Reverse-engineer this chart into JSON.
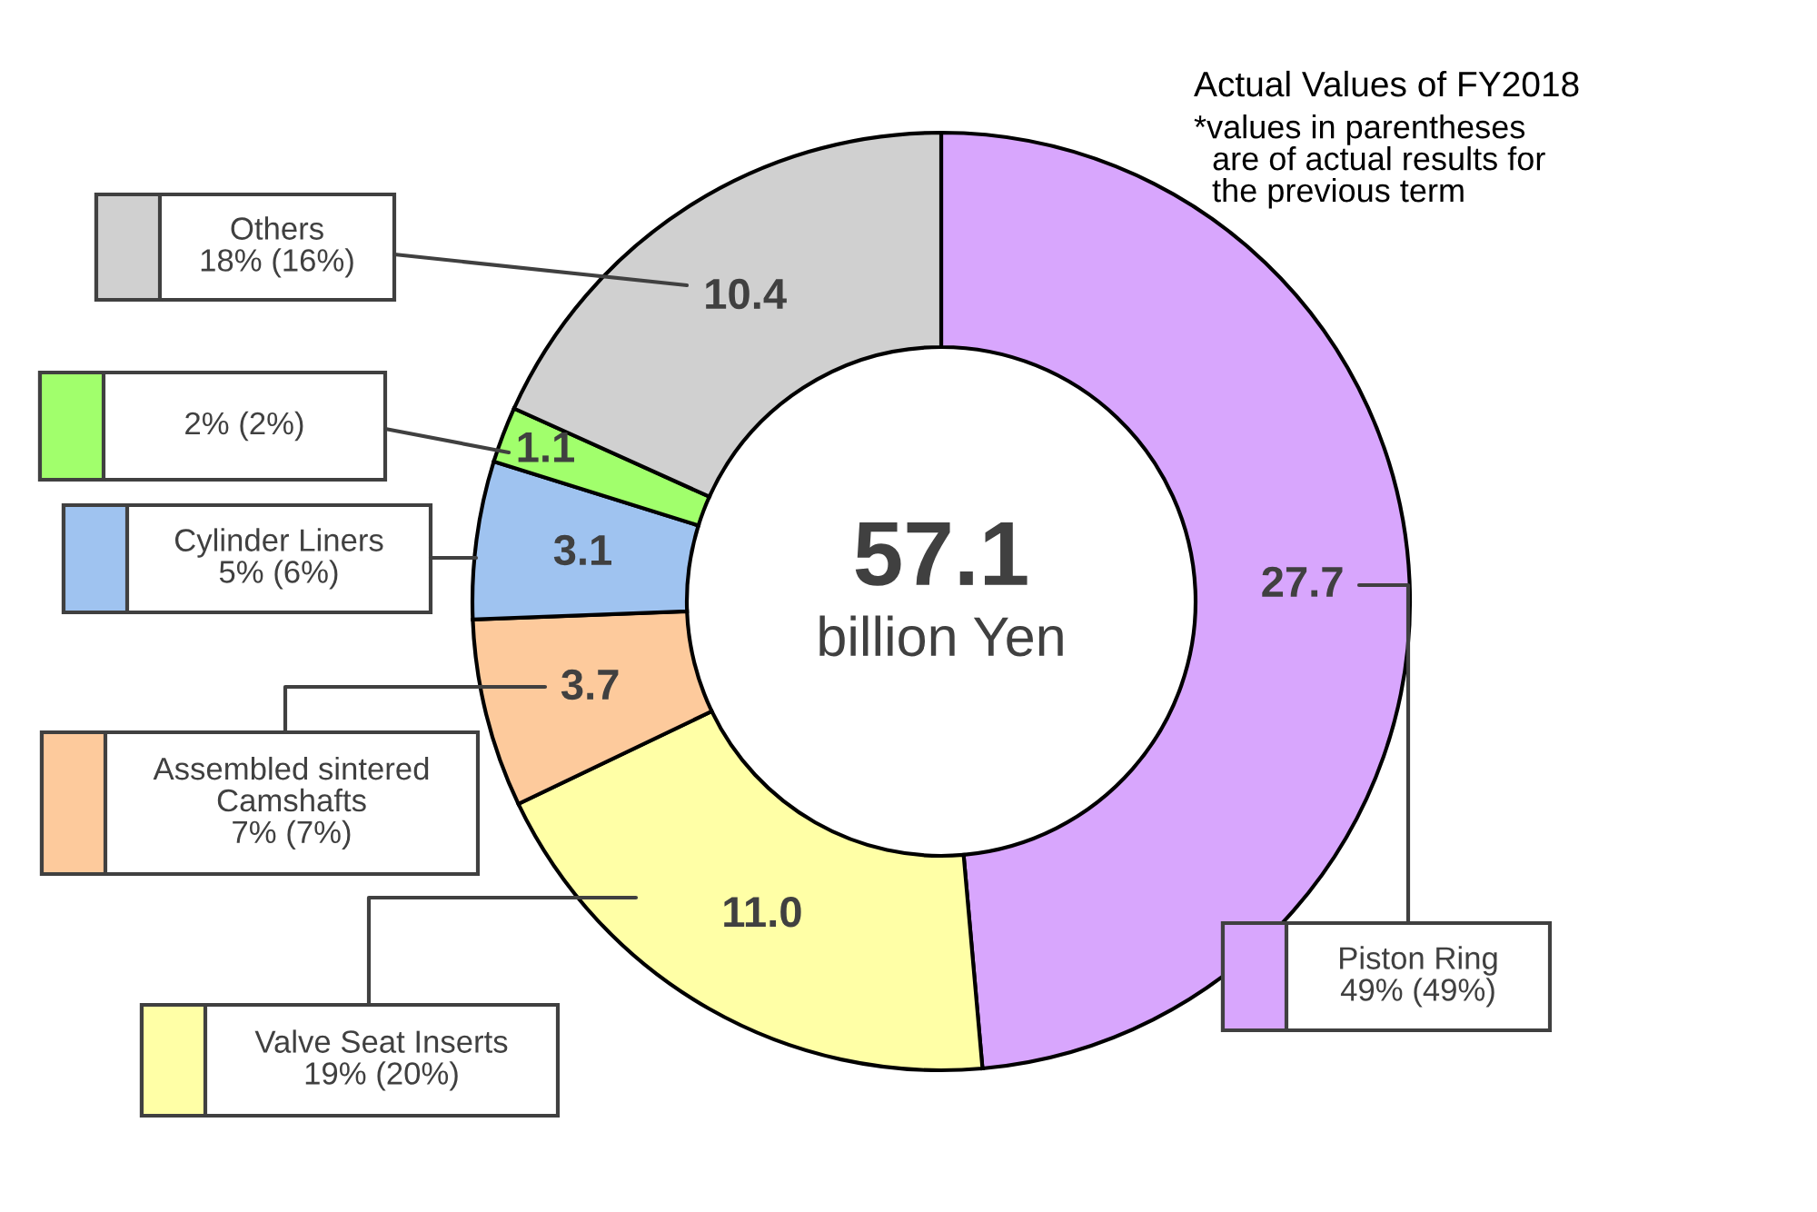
{
  "chart_data": {
    "type": "donut",
    "title": "Actual Values of FY2018",
    "subtitle": "*values in parentheses\n  are of actual results for\n  the previous term",
    "categories": [
      "Piston Ring",
      "Valve Seat Inserts",
      "Assembled sintered\nCamshafts",
      "Cylinder Liners",
      null,
      "Others"
    ],
    "values": [
      27.7,
      11.0,
      3.7,
      3.1,
      1.1,
      10.4
    ],
    "value_labels": [
      "27.7",
      "11.0",
      "3.7",
      "3.1",
      "1.1",
      "10.4"
    ],
    "colors": [
      "#d8a6fd",
      "#ffffa6",
      "#fdca9c",
      "#9fc3f0",
      "#a1ff6c",
      "#d0d0d0"
    ],
    "annotations": [
      "49% (49%)",
      "19% (20%)",
      "7% (7%)",
      "5% (6%)",
      "2% (2%)",
      "18% (16%)",
      "57.1",
      "billion Yen"
    ]
  }
}
